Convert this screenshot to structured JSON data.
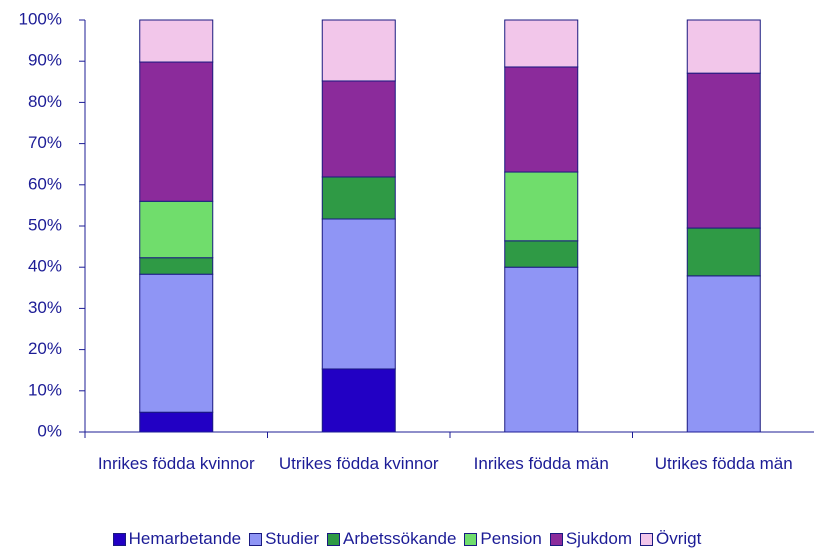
{
  "chart_data": {
    "type": "stacked_bar",
    "categories": [
      "Inrikes födda kvinnor",
      "Utrikes födda kvinnor",
      "Inrikes födda män",
      "Utrikes födda män"
    ],
    "series": [
      {
        "name": "Hemarbetande",
        "color": "#2200c4",
        "values": [
          4.8,
          15.3,
          0,
          0
        ]
      },
      {
        "name": "Studier",
        "color": "#8f95f5",
        "values": [
          33.5,
          36.4,
          40.0,
          37.9
        ]
      },
      {
        "name": "Arbetssökande",
        "color": "#2f9a45",
        "values": [
          4.0,
          10.2,
          6.4,
          11.6
        ]
      },
      {
        "name": "Pension",
        "color": "#70dd6c",
        "values": [
          13.7,
          0,
          16.7,
          0
        ]
      },
      {
        "name": "Sjukdom",
        "color": "#8b2b9b",
        "values": [
          33.8,
          23.3,
          25.5,
          37.6
        ]
      },
      {
        "name": "Övrigt",
        "color": "#f2c6ea",
        "values": [
          10.2,
          14.8,
          11.4,
          12.9
        ]
      }
    ],
    "ylim": [
      0,
      100
    ],
    "yticks": [
      {
        "value": 0,
        "label": "0%"
      },
      {
        "value": 10,
        "label": "10%"
      },
      {
        "value": 20,
        "label": "20%"
      },
      {
        "value": 30,
        "label": "30%"
      },
      {
        "value": 40,
        "label": "40%"
      },
      {
        "value": 50,
        "label": "50%"
      },
      {
        "value": 60,
        "label": "60%"
      },
      {
        "value": 70,
        "label": "70%"
      },
      {
        "value": 80,
        "label": "80%"
      },
      {
        "value": 90,
        "label": "90%"
      },
      {
        "value": 100,
        "label": "100%"
      }
    ],
    "legend": "bottom"
  }
}
